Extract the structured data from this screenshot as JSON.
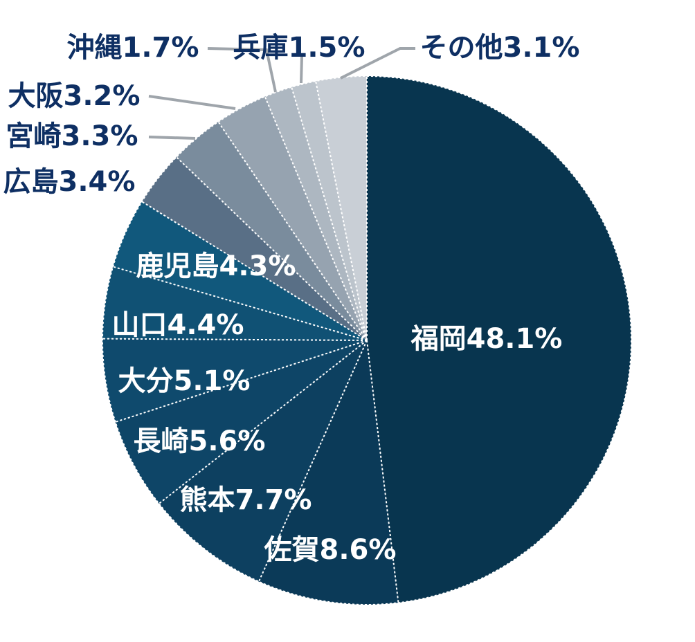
{
  "chart_data": {
    "type": "pie",
    "title": "",
    "start": "top",
    "direction": "clockwise",
    "slices": [
      {
        "label": "福岡",
        "value": 48.1,
        "text": "福岡48.1%",
        "color": "#08354f",
        "label_pos": "inside"
      },
      {
        "label": "佐賀",
        "value": 8.6,
        "text": "佐賀8.6%",
        "color": "#0b3a58",
        "label_pos": "inside"
      },
      {
        "label": "熊本",
        "value": 7.7,
        "text": "熊本7.7%",
        "color": "#0d4060",
        "label_pos": "inside"
      },
      {
        "label": "長崎",
        "value": 5.6,
        "text": "長崎5.6%",
        "color": "#0e4567",
        "label_pos": "inside"
      },
      {
        "label": "大分",
        "value": 5.1,
        "text": "大分5.1%",
        "color": "#0f4a6d",
        "label_pos": "inside"
      },
      {
        "label": "山口",
        "value": 4.4,
        "text": "山口4.4%",
        "color": "#105174",
        "label_pos": "inside"
      },
      {
        "label": "鹿児島",
        "value": 4.3,
        "text": "鹿児島4.3%",
        "color": "#11587c",
        "label_pos": "inside"
      },
      {
        "label": "広島",
        "value": 3.4,
        "text": "広島3.4%",
        "color": "#596f86",
        "label_pos": "outside"
      },
      {
        "label": "宮崎",
        "value": 3.3,
        "text": "宮崎3.3%",
        "color": "#7a8c9d",
        "label_pos": "outside"
      },
      {
        "label": "大阪",
        "value": 3.2,
        "text": "大阪3.2%",
        "color": "#96a3b0",
        "label_pos": "outside"
      },
      {
        "label": "沖縄",
        "value": 1.7,
        "text": "沖縄1.7%",
        "color": "#adb7c1",
        "label_pos": "outside"
      },
      {
        "label": "兵庫",
        "value": 1.5,
        "text": "兵庫1.5%",
        "color": "#bcc4cc",
        "label_pos": "outside"
      },
      {
        "label": "その他",
        "value": 3.1,
        "text": "その他3.1%",
        "color": "#c9cfd6",
        "label_pos": "outside"
      }
    ]
  }
}
